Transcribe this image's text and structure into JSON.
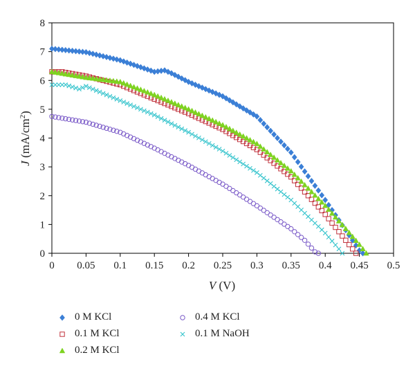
{
  "chart_data": {
    "type": "scatter",
    "xlabel_var": "V",
    "xlabel_unit": " (V)",
    "ylabel_var": "J",
    "ylabel_unit_pre": " (mA/cm",
    "ylabel_unit_sup": "2",
    "ylabel_unit_post": ")",
    "xlim": [
      0,
      0.5
    ],
    "ylim": [
      0,
      8
    ],
    "xticks": [
      "0",
      "0.05",
      "0.1",
      "0.15",
      "0.2",
      "0.25",
      "0.3",
      "0.35",
      "0.4",
      "0.45",
      "0.5"
    ],
    "yticks": [
      "0",
      "1",
      "2",
      "3",
      "4",
      "5",
      "6",
      "7",
      "8"
    ],
    "grid": false,
    "legend_position": "bottom",
    "series": [
      {
        "name": "0 M KCl",
        "marker": "diamond",
        "color": "#3b7fd6",
        "points": [
          [
            0,
            7.1
          ],
          [
            0.05,
            6.98
          ],
          [
            0.1,
            6.7
          ],
          [
            0.15,
            6.3
          ],
          [
            0.165,
            6.35
          ],
          [
            0.175,
            6.25
          ],
          [
            0.2,
            5.95
          ],
          [
            0.25,
            5.45
          ],
          [
            0.3,
            4.75
          ],
          [
            0.35,
            3.5
          ],
          [
            0.4,
            1.85
          ],
          [
            0.43,
            0.8
          ],
          [
            0.45,
            0.1
          ],
          [
            0.455,
            0
          ]
        ]
      },
      {
        "name": "0.1 M KCl",
        "marker": "square",
        "color": "#c0303a",
        "points": [
          [
            0,
            6.3
          ],
          [
            0.015,
            6.3
          ],
          [
            0.05,
            6.15
          ],
          [
            0.1,
            5.85
          ],
          [
            0.15,
            5.35
          ],
          [
            0.2,
            4.85
          ],
          [
            0.25,
            4.3
          ],
          [
            0.3,
            3.6
          ],
          [
            0.35,
            2.65
          ],
          [
            0.4,
            1.35
          ],
          [
            0.43,
            0.45
          ],
          [
            0.445,
            0
          ]
        ]
      },
      {
        "name": "0.2 M KCl",
        "marker": "triangle",
        "color": "#7ed321",
        "points": [
          [
            0,
            6.3
          ],
          [
            0.05,
            6.1
          ],
          [
            0.1,
            5.95
          ],
          [
            0.15,
            5.5
          ],
          [
            0.2,
            5.0
          ],
          [
            0.25,
            4.45
          ],
          [
            0.3,
            3.8
          ],
          [
            0.35,
            2.85
          ],
          [
            0.4,
            1.65
          ],
          [
            0.43,
            0.85
          ],
          [
            0.45,
            0.3
          ],
          [
            0.46,
            0
          ]
        ]
      },
      {
        "name": "0.4 M KCl",
        "marker": "circle",
        "color": "#7a5ac8",
        "points": [
          [
            0,
            4.75
          ],
          [
            0.05,
            4.55
          ],
          [
            0.1,
            4.2
          ],
          [
            0.15,
            3.65
          ],
          [
            0.2,
            3.05
          ],
          [
            0.25,
            2.4
          ],
          [
            0.3,
            1.65
          ],
          [
            0.35,
            0.85
          ],
          [
            0.37,
            0.45
          ],
          [
            0.385,
            0.05
          ],
          [
            0.39,
            0
          ]
        ]
      },
      {
        "name": "0.1 M NaOH",
        "marker": "x",
        "color": "#33c3cc",
        "points": [
          [
            0,
            5.85
          ],
          [
            0.02,
            5.85
          ],
          [
            0.04,
            5.7
          ],
          [
            0.05,
            5.8
          ],
          [
            0.1,
            5.3
          ],
          [
            0.15,
            4.8
          ],
          [
            0.2,
            4.2
          ],
          [
            0.25,
            3.55
          ],
          [
            0.3,
            2.8
          ],
          [
            0.35,
            1.85
          ],
          [
            0.4,
            0.7
          ],
          [
            0.42,
            0.15
          ],
          [
            0.425,
            0
          ]
        ]
      }
    ]
  }
}
